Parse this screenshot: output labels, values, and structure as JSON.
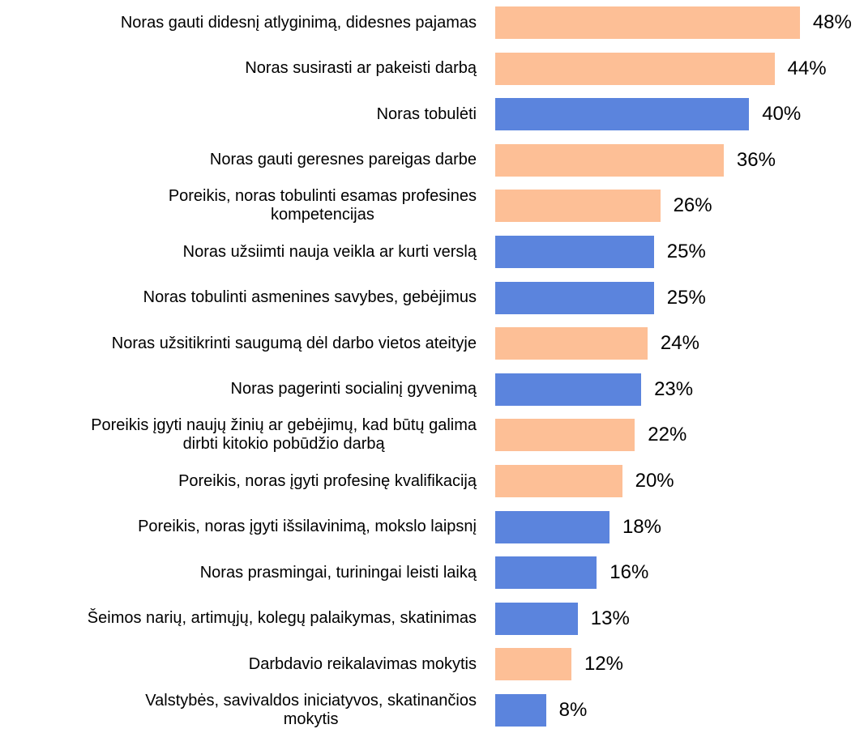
{
  "chart_data": {
    "type": "barh",
    "categories": [
      "Noras gauti didesnį atlyginimą, didesnes pajamas",
      "Noras susirasti ar pakeisti darbą",
      "Noras tobulėti",
      "Noras gauti geresnes pareigas darbe",
      "Poreikis, noras tobulinti esamas profesines\nkompetencijas",
      "Noras užsiimti nauja veikla ar kurti verslą",
      "Noras tobulinti asmenines savybes, gebėjimus",
      "Noras užsitikrinti saugumą dėl darbo vietos ateityje",
      "Noras pagerinti socialinį gyvenimą",
      "Poreikis įgyti naujų žinių ar gebėjimų, kad būtų galima\ndirbti kitokio pobūdžio darbą",
      "Poreikis, noras įgyti profesinę kvalifikaciją",
      "Poreikis, noras įgyti išsilavinimą, mokslo laipsnį",
      "Noras prasmingai, turiningai leisti laiką",
      "Šeimos narių, artimųjų, kolegų palaikymas, skatinimas",
      "Darbdavio reikalavimas mokytis",
      "Valstybės, savivaldos iniciatyvos, skatinančios\nmokytis"
    ],
    "values": [
      48,
      44,
      40,
      36,
      26,
      25,
      25,
      24,
      23,
      22,
      20,
      18,
      16,
      13,
      12,
      8
    ],
    "value_labels": [
      "48%",
      "44%",
      "40%",
      "36%",
      "26%",
      "25%",
      "25%",
      "24%",
      "23%",
      "22%",
      "20%",
      "18%",
      "16%",
      "13%",
      "12%",
      "8%"
    ],
    "colors": [
      "#fdbf96",
      "#fdbf96",
      "#5b84dd",
      "#fdbf96",
      "#fdbf96",
      "#5b84dd",
      "#5b84dd",
      "#fdbf96",
      "#5b84dd",
      "#fdbf96",
      "#fdbf96",
      "#5b84dd",
      "#5b84dd",
      "#5b84dd",
      "#fdbf96",
      "#5b84dd"
    ]
  }
}
